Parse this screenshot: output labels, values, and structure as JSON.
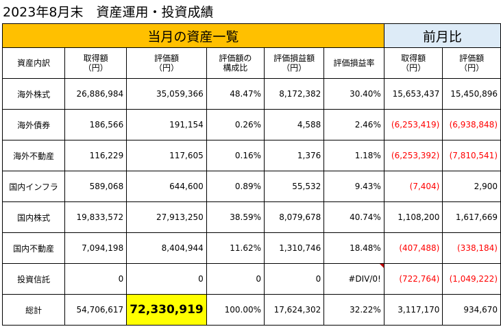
{
  "title": "2023年8月末　資産運用・投資成績",
  "bands": {
    "current": "当月の資産一覧",
    "previous": "前月比"
  },
  "headers": [
    [
      "資産内訳"
    ],
    [
      "取得額",
      "（円）"
    ],
    [
      "評価額",
      "（円）"
    ],
    [
      "評価額の",
      "構成比"
    ],
    [
      "評価損益額",
      "（円）"
    ],
    [
      "評価損益率"
    ],
    [
      "取得額",
      "（円）"
    ],
    [
      "評価額",
      "（円）"
    ]
  ],
  "rows": [
    {
      "label": "海外株式",
      "cost": "26,886,984",
      "value": "35,059,366",
      "ratio": "48.47%",
      "pl": "8,172,382",
      "plrate": "30.40%",
      "prev_cost": "15,653,437",
      "prev_value": "15,450,896"
    },
    {
      "label": "海外債券",
      "cost": "186,566",
      "value": "191,154",
      "ratio": "0.26%",
      "pl": "4,588",
      "plrate": "2.46%",
      "prev_cost": "(6,253,419)",
      "prev_value": "(6,938,848)"
    },
    {
      "label": "海外不動産",
      "cost": "116,229",
      "value": "117,605",
      "ratio": "0.16%",
      "pl": "1,376",
      "plrate": "1.18%",
      "prev_cost": "(6,253,392)",
      "prev_value": "(7,810,541)"
    },
    {
      "label": "国内インフラ",
      "cost": "589,068",
      "value": "644,600",
      "ratio": "0.89%",
      "pl": "55,532",
      "plrate": "9.43%",
      "prev_cost": "(7,404)",
      "prev_value": "2,900"
    },
    {
      "label": "国内株式",
      "cost": "19,833,572",
      "value": "27,913,250",
      "ratio": "38.59%",
      "pl": "8,079,678",
      "plrate": "40.74%",
      "prev_cost": "1,108,200",
      "prev_value": "1,617,669"
    },
    {
      "label": "国内不動産",
      "cost": "7,094,198",
      "value": "8,404,944",
      "ratio": "11.62%",
      "pl": "1,310,746",
      "plrate": "18.48%",
      "prev_cost": "(407,488)",
      "prev_value": "(338,184)"
    },
    {
      "label": "投資信託",
      "cost": "0",
      "value": "0",
      "ratio": "0",
      "pl": "0",
      "plrate": "#DIV/0!",
      "prev_cost": "(722,764)",
      "prev_value": "(1,049,222)"
    },
    {
      "label": "総計",
      "cost": "54,706,617",
      "value": "72,330,919",
      "ratio": "100.00%",
      "pl": "17,624,302",
      "plrate": "32.22%",
      "prev_cost": "3,117,170",
      "prev_value": "934,670"
    }
  ],
  "colors": {
    "band_current": "#FFC000",
    "band_previous": "#DDEBF7",
    "highlight": "#FFFF00",
    "negative": "#FF0000",
    "error_marker": "#C00000"
  }
}
